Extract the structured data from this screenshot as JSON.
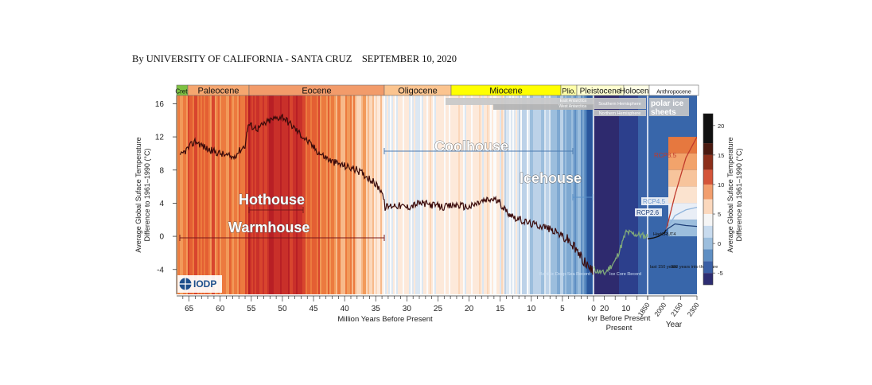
{
  "byline": "By UNIVERSITY OF CALIFORNIA - SANTA CRUZ    SEPTEMBER 10, 2020",
  "chart_data": {
    "type": "line",
    "ylabel": "Average Global Suface Temperature\nDifference to 1961–1990 (°C)",
    "ylabel_right": "Average Global Suface Temperature\nDifference to 1961–1990 (°C)",
    "ylim": [
      -7,
      17
    ],
    "yticks": [
      16,
      12,
      8,
      4,
      0,
      -4
    ],
    "colorbar_ticks": [
      20,
      15,
      10,
      5,
      0,
      -5
    ],
    "panels": [
      {
        "xlabel": "Million Years Before Present",
        "xlim": [
          67,
          0
        ],
        "xticks": [
          65,
          60,
          55,
          50,
          45,
          40,
          35,
          30,
          25,
          20,
          15,
          10,
          5,
          0
        ]
      },
      {
        "xlabel": "kyr Before Present",
        "xlim": [
          25,
          0
        ],
        "xticks": [
          20,
          10
        ]
      },
      {
        "xlabel": "Year",
        "xlim": [
          1850,
          2300
        ],
        "xticks": [
          1850,
          2000,
          2150,
          2300
        ]
      }
    ],
    "epochs": [
      "Cret.",
      "Paleocene",
      "Eocene",
      "Oligocene",
      "Miocene",
      "Plio.",
      "Pleistocene",
      "Holocene",
      "Anthropocene"
    ],
    "climate_states": [
      "Hothouse",
      "Warmhouse",
      "Coolhouse",
      "Icehouse"
    ],
    "polar_ice_labels": [
      "East Antarctica",
      "West Antarctica",
      "Southern Hemisphere",
      "Northern Hemisphere",
      "polar ice",
      "sheets"
    ],
    "record_labels": [
      "Benthic Deep-Sea Record",
      "Ice Core Record",
      "HadCRUT4",
      "last 150 years",
      "300 years into the future"
    ],
    "series": [
      {
        "name": "Benthic Deep-Sea Record",
        "x": [
          67,
          66,
          64,
          62,
          60,
          58,
          56,
          55.5,
          54,
          52,
          50,
          48,
          46,
          44,
          42,
          40,
          38,
          36,
          34,
          33.5,
          32,
          30,
          28,
          26,
          24,
          22,
          20,
          18,
          16,
          15,
          14,
          12,
          10,
          8,
          6,
          5,
          4,
          3,
          2,
          1,
          0
        ],
        "y": [
          9.0,
          10.0,
          11.5,
          10.5,
          10.0,
          9.5,
          11.0,
          13.5,
          13.0,
          14.0,
          14.5,
          13.0,
          11.5,
          10.0,
          9.0,
          8.5,
          8.0,
          7.0,
          5.5,
          3.5,
          3.8,
          3.5,
          4.0,
          3.8,
          3.5,
          3.8,
          3.5,
          4.2,
          4.5,
          4.0,
          3.0,
          2.0,
          1.5,
          1.2,
          0.5,
          0.0,
          -0.5,
          -1.5,
          -2.5,
          -3.5,
          -4.5
        ]
      },
      {
        "name": "Ice Core Record",
        "x": [
          25,
          20,
          15,
          12,
          10,
          5,
          0
        ],
        "y": [
          -4.0,
          -4.5,
          -3.0,
          -1.0,
          0.5,
          0.2,
          0.0
        ]
      },
      {
        "name": "HadCRUT4",
        "x": [
          1850,
          1900,
          1950,
          2000,
          2020
        ],
        "y": [
          -0.3,
          -0.2,
          0.0,
          0.4,
          0.8
        ]
      },
      {
        "name": "RCP8.5",
        "x": [
          2020,
          2100,
          2200,
          2300
        ],
        "y": [
          0.8,
          5.0,
          9.5,
          12.0
        ]
      },
      {
        "name": "RCP4.5",
        "x": [
          2020,
          2100,
          2200,
          2300
        ],
        "y": [
          0.8,
          2.5,
          3.2,
          3.5
        ]
      },
      {
        "name": "RCP2.6",
        "x": [
          2020,
          2100,
          2200,
          2300
        ],
        "y": [
          0.8,
          1.5,
          1.3,
          1.2
        ]
      }
    ]
  },
  "logo_text": "IODP"
}
